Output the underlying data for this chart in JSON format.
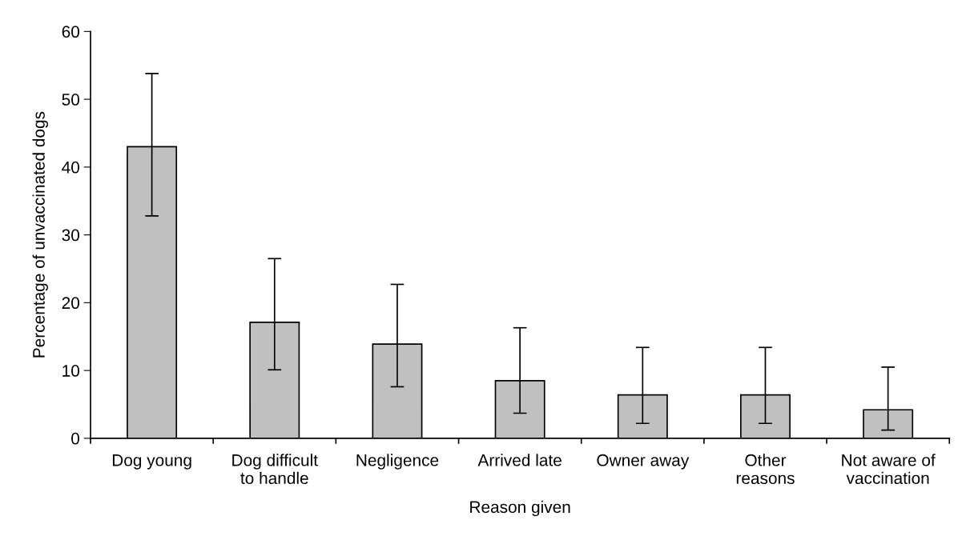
{
  "chart_data": {
    "type": "bar",
    "xlabel": "Reason given",
    "ylabel": "Percentage of unvaccinated dogs",
    "categories": [
      "Dog young",
      "Dog difficult\nto handle",
      "Negligence",
      "Arrived late",
      "Owner away",
      "Other\nreasons",
      "Not aware of\nvaccination"
    ],
    "values": [
      43.0,
      17.1,
      13.9,
      8.5,
      6.4,
      6.4,
      4.2
    ],
    "errors": [
      [
        32.8,
        53.8
      ],
      [
        10.1,
        26.5
      ],
      [
        7.6,
        22.7
      ],
      [
        3.7,
        16.3
      ],
      [
        2.2,
        13.4
      ],
      [
        2.2,
        13.4
      ],
      [
        1.2,
        10.5
      ]
    ],
    "color": "#c0c0c0",
    "ylim": [
      0,
      60
    ],
    "yticks": [
      0,
      10,
      20,
      30,
      40,
      50,
      60
    ],
    "grid": false,
    "legend": false
  }
}
